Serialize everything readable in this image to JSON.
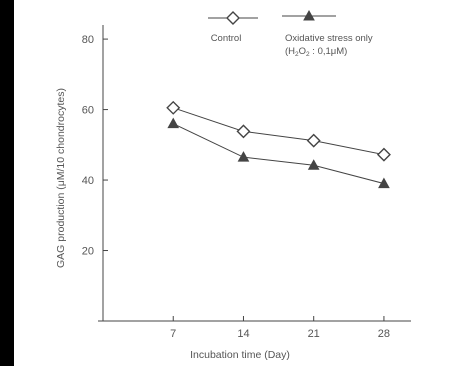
{
  "chart_data": {
    "type": "line",
    "xlabel": "Incubation time (Day)",
    "ylabel": "GAG production (μM/10 chondrocytes)",
    "x": [
      7,
      14,
      21,
      28
    ],
    "xlim": [
      0,
      30
    ],
    "ylim": [
      0,
      84
    ],
    "yticks": [
      20,
      40,
      60,
      80
    ],
    "xticks": [
      7,
      14,
      21,
      28
    ],
    "grid": false,
    "legend_position": "top",
    "series": [
      {
        "name": "Control",
        "marker": "diamond-open",
        "values": [
          60.5,
          53.8,
          51.2,
          47.2
        ]
      },
      {
        "name": "Oxidative stress only",
        "marker": "triangle-filled",
        "values": [
          56.0,
          46.5,
          44.2,
          39.0
        ]
      }
    ],
    "legend_extra": {
      "open_paren": "(H",
      "sub2a": "2",
      "O": "O",
      "sub2b": "2",
      "rest": " : 0,1μM)"
    }
  },
  "colors": {
    "line": "#444444",
    "text": "#555555",
    "background": "#ffffff"
  }
}
